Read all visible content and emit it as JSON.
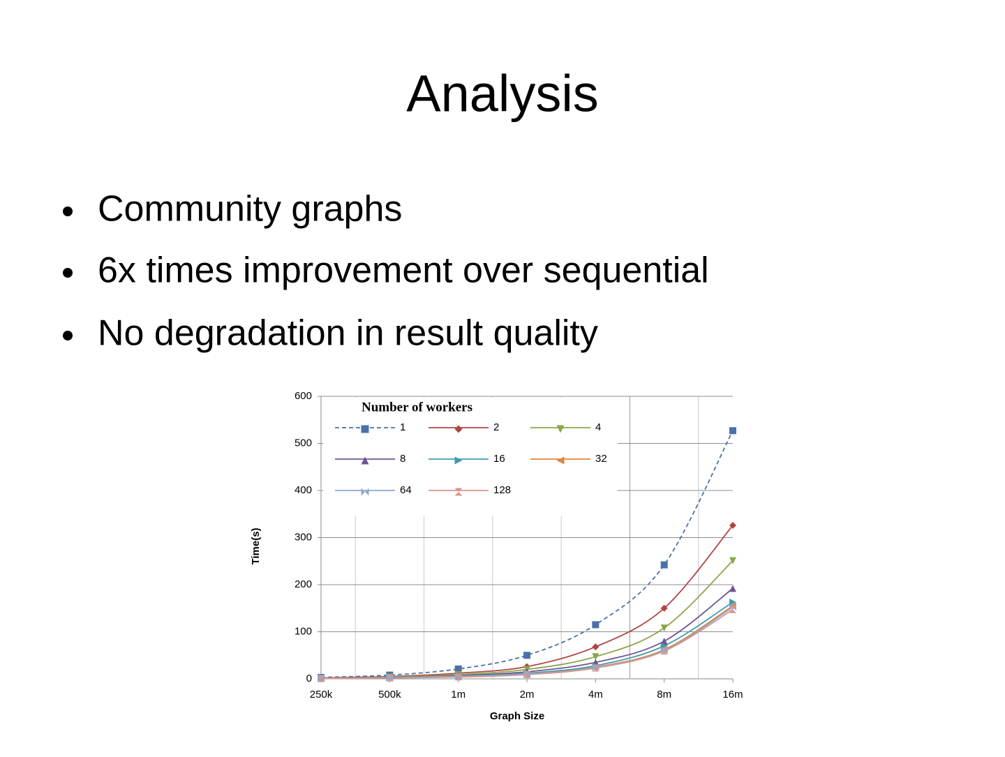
{
  "title": "Analysis",
  "bullets": [
    "Community graphs",
    "6x times improvement over sequential",
    "No degradation in result quality"
  ],
  "chart_data": {
    "type": "line",
    "x_label": "Graph Size",
    "y_label": "Time(s)",
    "legend_title": "Number of workers",
    "categories": [
      "250k",
      "500k",
      "1m",
      "2m",
      "4m",
      "8m",
      "16m"
    ],
    "ylim": [
      0,
      600
    ],
    "yticks": [
      0,
      100,
      200,
      300,
      400,
      500,
      600
    ],
    "grid": true,
    "legend": "upper left",
    "series": [
      {
        "name": "1",
        "color": "#4a72a8",
        "dash": true,
        "marker": "square",
        "values": [
          3,
          8,
          21,
          50,
          115,
          242,
          527
        ]
      },
      {
        "name": "2",
        "color": "#b04543",
        "marker": "diamond",
        "values": [
          2,
          5,
          12,
          26,
          68,
          150,
          326
        ]
      },
      {
        "name": "4",
        "color": "#8ba64b",
        "marker": "triangle-down",
        "values": [
          1,
          4,
          9,
          20,
          47,
          108,
          251
        ]
      },
      {
        "name": "8",
        "color": "#6f5592",
        "marker": "triangle-up",
        "values": [
          1,
          3,
          7,
          15,
          35,
          80,
          192
        ]
      },
      {
        "name": "16",
        "color": "#3e9bb2",
        "marker": "triangle-right",
        "values": [
          1,
          3,
          6,
          12,
          28,
          70,
          163
        ]
      },
      {
        "name": "32",
        "color": "#e0873a",
        "marker": "triangle-left",
        "values": [
          1,
          2,
          5,
          10,
          25,
          62,
          155
        ]
      },
      {
        "name": "64",
        "color": "#8fa9cf",
        "marker": "bowtie",
        "values": [
          1,
          2,
          5,
          10,
          24,
          60,
          152
        ]
      },
      {
        "name": "128",
        "color": "#d79590",
        "marker": "hourglass",
        "values": [
          1,
          2,
          4,
          9,
          23,
          59,
          147
        ]
      }
    ]
  }
}
